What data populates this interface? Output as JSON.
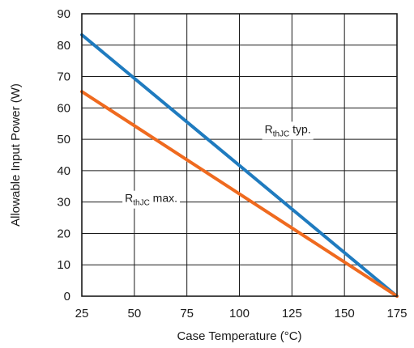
{
  "chart_data": {
    "type": "line",
    "title": "",
    "xlabel": "Case Temperature (°C)",
    "ylabel": "Allowable Input Power (W)",
    "xlim": [
      25,
      175
    ],
    "ylim": [
      0,
      90
    ],
    "xticks": [
      25,
      50,
      75,
      100,
      125,
      150,
      175
    ],
    "yticks": [
      0,
      10,
      20,
      30,
      40,
      50,
      60,
      70,
      80,
      90
    ],
    "grid": true,
    "legend": "none",
    "series": [
      {
        "color": "#1f7bbf",
        "x": [
          25,
          175
        ],
        "y": [
          83.3,
          0
        ]
      },
      {
        "color": "#ef6a1f",
        "x": [
          25,
          175
        ],
        "y": [
          65.2,
          0
        ]
      }
    ],
    "annotations": [
      {
        "main": "R",
        "sub": "thJC",
        "rest": " typ.",
        "x": 123,
        "y": 52
      },
      {
        "main": "R",
        "sub": "thJC",
        "rest": " max.",
        "x": 58,
        "y": 30
      }
    ]
  }
}
